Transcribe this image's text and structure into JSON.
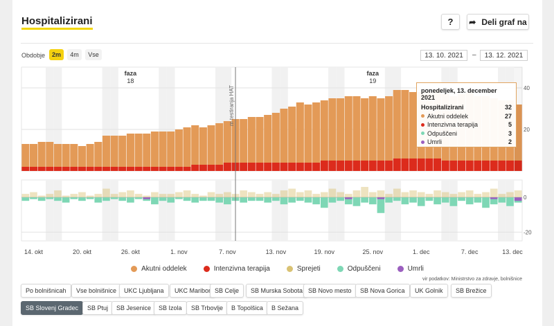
{
  "header": {
    "title": "Hospitalizirani",
    "help_label": "?",
    "share_label": "Deli graf na",
    "share_icon": "share-arrow-icon"
  },
  "period": {
    "label": "Obdobje",
    "options": [
      "2m",
      "4m",
      "Vse"
    ],
    "selected": "2m",
    "date_from": "13. 10. 2021",
    "date_sep": "–",
    "date_to": "13. 12. 2021"
  },
  "tooltip": {
    "date": "ponedeljek, 13. december 2021",
    "rows": [
      {
        "name": "Hospitalizirani",
        "value": "32"
      },
      {
        "name": "Akutni oddelek",
        "value": "27"
      },
      {
        "name": "Intenzivna terapija",
        "value": "5"
      },
      {
        "name": "Odpuščeni",
        "value": "3"
      },
      {
        "name": "Umrli",
        "value": "2"
      }
    ]
  },
  "legend": [
    {
      "name": "Akutni oddelek",
      "color": "#e39a57"
    },
    {
      "name": "Intenzivna terapija",
      "color": "#dc2b1c"
    },
    {
      "name": "Sprejeti",
      "color": "#d9c273"
    },
    {
      "name": "Odpuščeni",
      "color": "#7ed7b5"
    },
    {
      "name": "Umrli",
      "color": "#9b5fbf"
    }
  ],
  "source": "vir podatkov: Ministrstvo za zdravje, bolnišnice",
  "hospitals": [
    "Po bolnišnicah",
    "Vse bolnišnice",
    "UKC Ljubljana",
    "UKC Maribor",
    "SB Celje",
    "SB Murska Sobota",
    "SB Novo mesto",
    "SB Nova Gorica",
    "UK Golnik",
    "SB Brežice",
    "SB Slovenj Gradec",
    "SB Ptuj",
    "SB Jesenice",
    "SB Izola",
    "SB Trbovlje",
    "B Topolšica",
    "B Sežana"
  ],
  "hospital_selected": "SB Slovenj Gradec",
  "chart_data": [
    {
      "type": "bar",
      "stacked": true,
      "x_start": "2021-10-13",
      "x_end": "2021-12-13",
      "xticks": [
        "14. okt",
        "20. okt",
        "26. okt",
        "1. nov",
        "7. nov",
        "13. nov",
        "19. nov",
        "25. nov",
        "1. dec",
        "7. dec",
        "13. dec"
      ],
      "yticks": [
        "20",
        "40"
      ],
      "ylim": [
        0,
        50
      ],
      "annotations": [
        {
          "text": "faza",
          "sub": "18",
          "date": "2021-10-26"
        },
        {
          "text": "faza",
          "sub": "19",
          "date": "2021-11-25"
        },
        {
          "text": "m testiranja HAT",
          "date": "2021-11-08"
        }
      ],
      "series": [
        {
          "name": "Akutni oddelek",
          "color": "#e39a57",
          "values": [
            11,
            11,
            12,
            12,
            11,
            11,
            11,
            10,
            11,
            12,
            15,
            15,
            15,
            16,
            16,
            16,
            17,
            17,
            17,
            18,
            19,
            19,
            18,
            19,
            20,
            20,
            21,
            21,
            22,
            22,
            23,
            24,
            26,
            27,
            29,
            28,
            29,
            29,
            30,
            30,
            31,
            31,
            30,
            31,
            30,
            31,
            33,
            33,
            32,
            32,
            32,
            33,
            32,
            31,
            32,
            33,
            31,
            31,
            30,
            29,
            29,
            27
          ]
        },
        {
          "name": "Intenzivna terapija",
          "color": "#dc2b1c",
          "values": [
            2,
            2,
            2,
            2,
            2,
            2,
            2,
            2,
            2,
            2,
            2,
            2,
            2,
            2,
            2,
            2,
            2,
            2,
            2,
            2,
            2,
            3,
            3,
            3,
            3,
            4,
            4,
            4,
            4,
            4,
            4,
            4,
            4,
            4,
            4,
            4,
            4,
            5,
            5,
            5,
            5,
            5,
            5,
            5,
            5,
            5,
            6,
            6,
            6,
            6,
            6,
            6,
            5,
            5,
            5,
            5,
            5,
            5,
            5,
            5,
            5,
            5
          ]
        }
      ]
    },
    {
      "type": "bar",
      "stacked": true,
      "x_start": "2021-10-13",
      "x_end": "2021-12-13",
      "yticks": [
        "0",
        "-20"
      ],
      "ylim": [
        -25,
        10
      ],
      "series": [
        {
          "name": "Sprejeti",
          "color": "#d9c273",
          "values": [
            2,
            3,
            1,
            2,
            4,
            1,
            2,
            3,
            1,
            2,
            5,
            2,
            3,
            4,
            2,
            1,
            3,
            2,
            2,
            3,
            4,
            2,
            1,
            3,
            2,
            3,
            2,
            4,
            3,
            2,
            3,
            2,
            4,
            5,
            3,
            4,
            2,
            3,
            5,
            3,
            2,
            4,
            6,
            3,
            4,
            2,
            5,
            3,
            4,
            3,
            2,
            4,
            3,
            2,
            3,
            4,
            2,
            3,
            5,
            2,
            3,
            4
          ]
        },
        {
          "name": "Odpuščeni",
          "color": "#7ed7b5",
          "values": [
            -2,
            -1,
            -2,
            -1,
            -2,
            -3,
            -1,
            -2,
            -1,
            -3,
            -2,
            -1,
            -2,
            -3,
            -1,
            -2,
            -4,
            -2,
            -3,
            -1,
            -2,
            -3,
            -2,
            -2,
            -3,
            -4,
            -2,
            -3,
            -2,
            -2,
            -3,
            -2,
            -4,
            -3,
            -2,
            -3,
            -4,
            -6,
            -3,
            -2,
            -4,
            -5,
            -3,
            -4,
            -9,
            -3,
            -2,
            -4,
            -3,
            -5,
            -2,
            -4,
            -3,
            -5,
            -2,
            -4,
            -3,
            -6,
            -4,
            -3,
            -5,
            -3
          ]
        },
        {
          "name": "Umrli",
          "color": "#9b5fbf",
          "values": [
            0,
            0,
            0,
            0,
            0,
            0,
            0,
            0,
            0,
            0,
            0,
            0,
            0,
            0,
            0,
            -1,
            0,
            0,
            0,
            0,
            0,
            0,
            0,
            0,
            0,
            0,
            0,
            0,
            0,
            0,
            0,
            0,
            0,
            0,
            0,
            0,
            0,
            0,
            0,
            0,
            -1,
            0,
            0,
            0,
            -1,
            0,
            0,
            0,
            0,
            0,
            0,
            0,
            0,
            0,
            0,
            0,
            0,
            0,
            -1,
            0,
            0,
            -2
          ]
        }
      ]
    }
  ]
}
